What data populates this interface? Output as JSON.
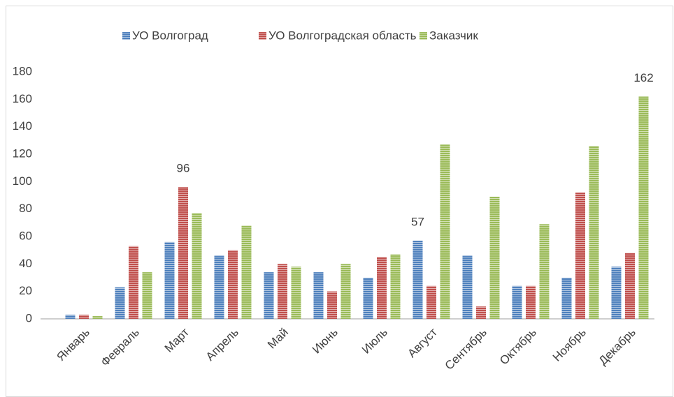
{
  "chart_data": {
    "type": "bar",
    "categories": [
      "Январь",
      "Февраль",
      "Март",
      "Апрель",
      "Май",
      "Июнь",
      "Июль",
      "Август",
      "Сентябрь",
      "Октябрь",
      "Ноябрь",
      "Декабрь"
    ],
    "series": [
      {
        "name": "УО Волгоград",
        "color": "#4f81bd",
        "values": [
          3,
          23,
          56,
          46,
          34,
          34,
          30,
          57,
          46,
          24,
          30,
          38
        ],
        "value_labels": [
          null,
          null,
          null,
          null,
          null,
          null,
          null,
          "57",
          null,
          null,
          null,
          null
        ]
      },
      {
        "name": "УО Волгоградская область",
        "color": "#c0504d",
        "values": [
          3,
          53,
          96,
          50,
          40,
          20,
          45,
          24,
          9,
          24,
          92,
          48
        ],
        "value_labels": [
          null,
          null,
          "96",
          null,
          null,
          null,
          null,
          null,
          null,
          null,
          null,
          null
        ]
      },
      {
        "name": "Заказчик",
        "color": "#9bbb59",
        "values": [
          2,
          34,
          77,
          68,
          38,
          40,
          47,
          127,
          89,
          69,
          126,
          162
        ],
        "value_labels": [
          null,
          null,
          null,
          null,
          null,
          null,
          null,
          null,
          null,
          null,
          null,
          "162"
        ]
      }
    ],
    "ylim": [
      0,
      180
    ],
    "yticks": [
      0,
      20,
      40,
      60,
      80,
      100,
      120,
      140,
      160,
      180
    ],
    "grid": false,
    "legend": "top"
  }
}
